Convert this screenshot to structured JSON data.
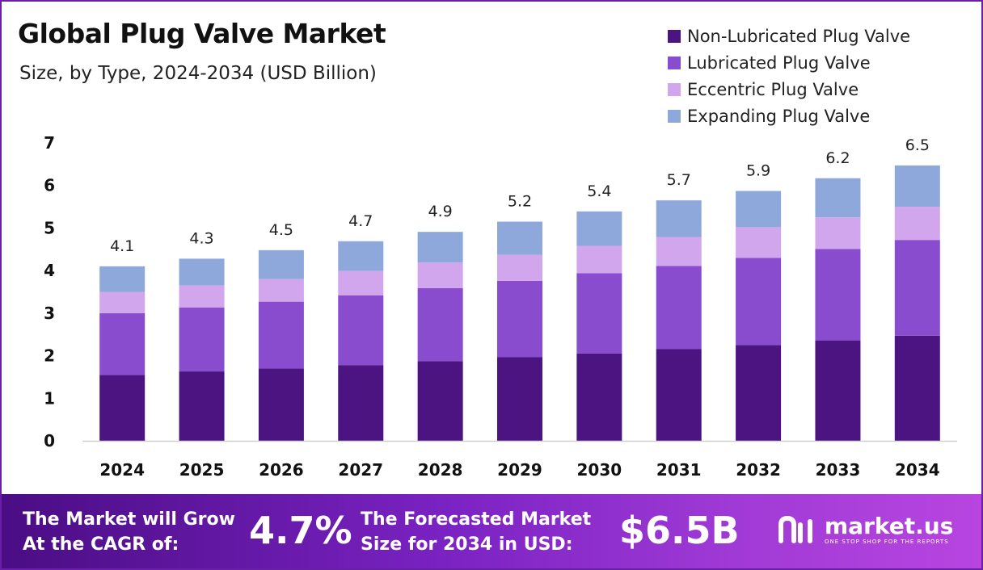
{
  "header": {
    "title": "Global Plug Valve Market",
    "subtitle": "Size, by Type, 2024-2034 (USD Billion)"
  },
  "chart_data": {
    "type": "bar",
    "stacked": true,
    "categories": [
      "2024",
      "2025",
      "2026",
      "2027",
      "2028",
      "2029",
      "2030",
      "2031",
      "2032",
      "2033",
      "2034"
    ],
    "series": [
      {
        "name": "Non-Lubricated Plug Valve",
        "color": "#4b1480",
        "values": [
          1.55,
          1.63,
          1.7,
          1.78,
          1.87,
          1.97,
          2.05,
          2.16,
          2.25,
          2.36,
          2.47
        ]
      },
      {
        "name": "Lubricated Plug Valve",
        "color": "#8a4ccf",
        "values": [
          1.45,
          1.5,
          1.57,
          1.64,
          1.72,
          1.79,
          1.89,
          1.95,
          2.05,
          2.15,
          2.25
        ]
      },
      {
        "name": "Eccentric Plug Valve",
        "color": "#d2a6ec",
        "values": [
          0.5,
          0.52,
          0.53,
          0.57,
          0.6,
          0.61,
          0.64,
          0.68,
          0.72,
          0.74,
          0.78
        ]
      },
      {
        "name": "Expanding Plug Valve",
        "color": "#8fa8dc",
        "values": [
          0.6,
          0.63,
          0.68,
          0.7,
          0.72,
          0.78,
          0.81,
          0.86,
          0.85,
          0.92,
          0.97
        ]
      }
    ],
    "totals": [
      "4.1",
      "4.3",
      "4.5",
      "4.7",
      "4.9",
      "5.2",
      "5.4",
      "5.7",
      "5.9",
      "6.2",
      "6.5"
    ],
    "ylim": [
      0,
      7
    ],
    "yticks": [
      "0",
      "1",
      "2",
      "3",
      "4",
      "5",
      "6",
      "7"
    ],
    "xlabel": "",
    "ylabel": "",
    "grid": false,
    "legend_position": "top-right"
  },
  "footer": {
    "cagr_text_line1": "The Market will Grow",
    "cagr_text_line2": "At the CAGR of:",
    "cagr_value": "4.7%",
    "forecast_text_line1": "The Forecasted Market",
    "forecast_text_line2": "Size for 2034 in USD:",
    "forecast_value": "$6.5B",
    "brand_name": "market.us",
    "brand_tagline": "ONE STOP SHOP FOR THE REPORTS"
  }
}
